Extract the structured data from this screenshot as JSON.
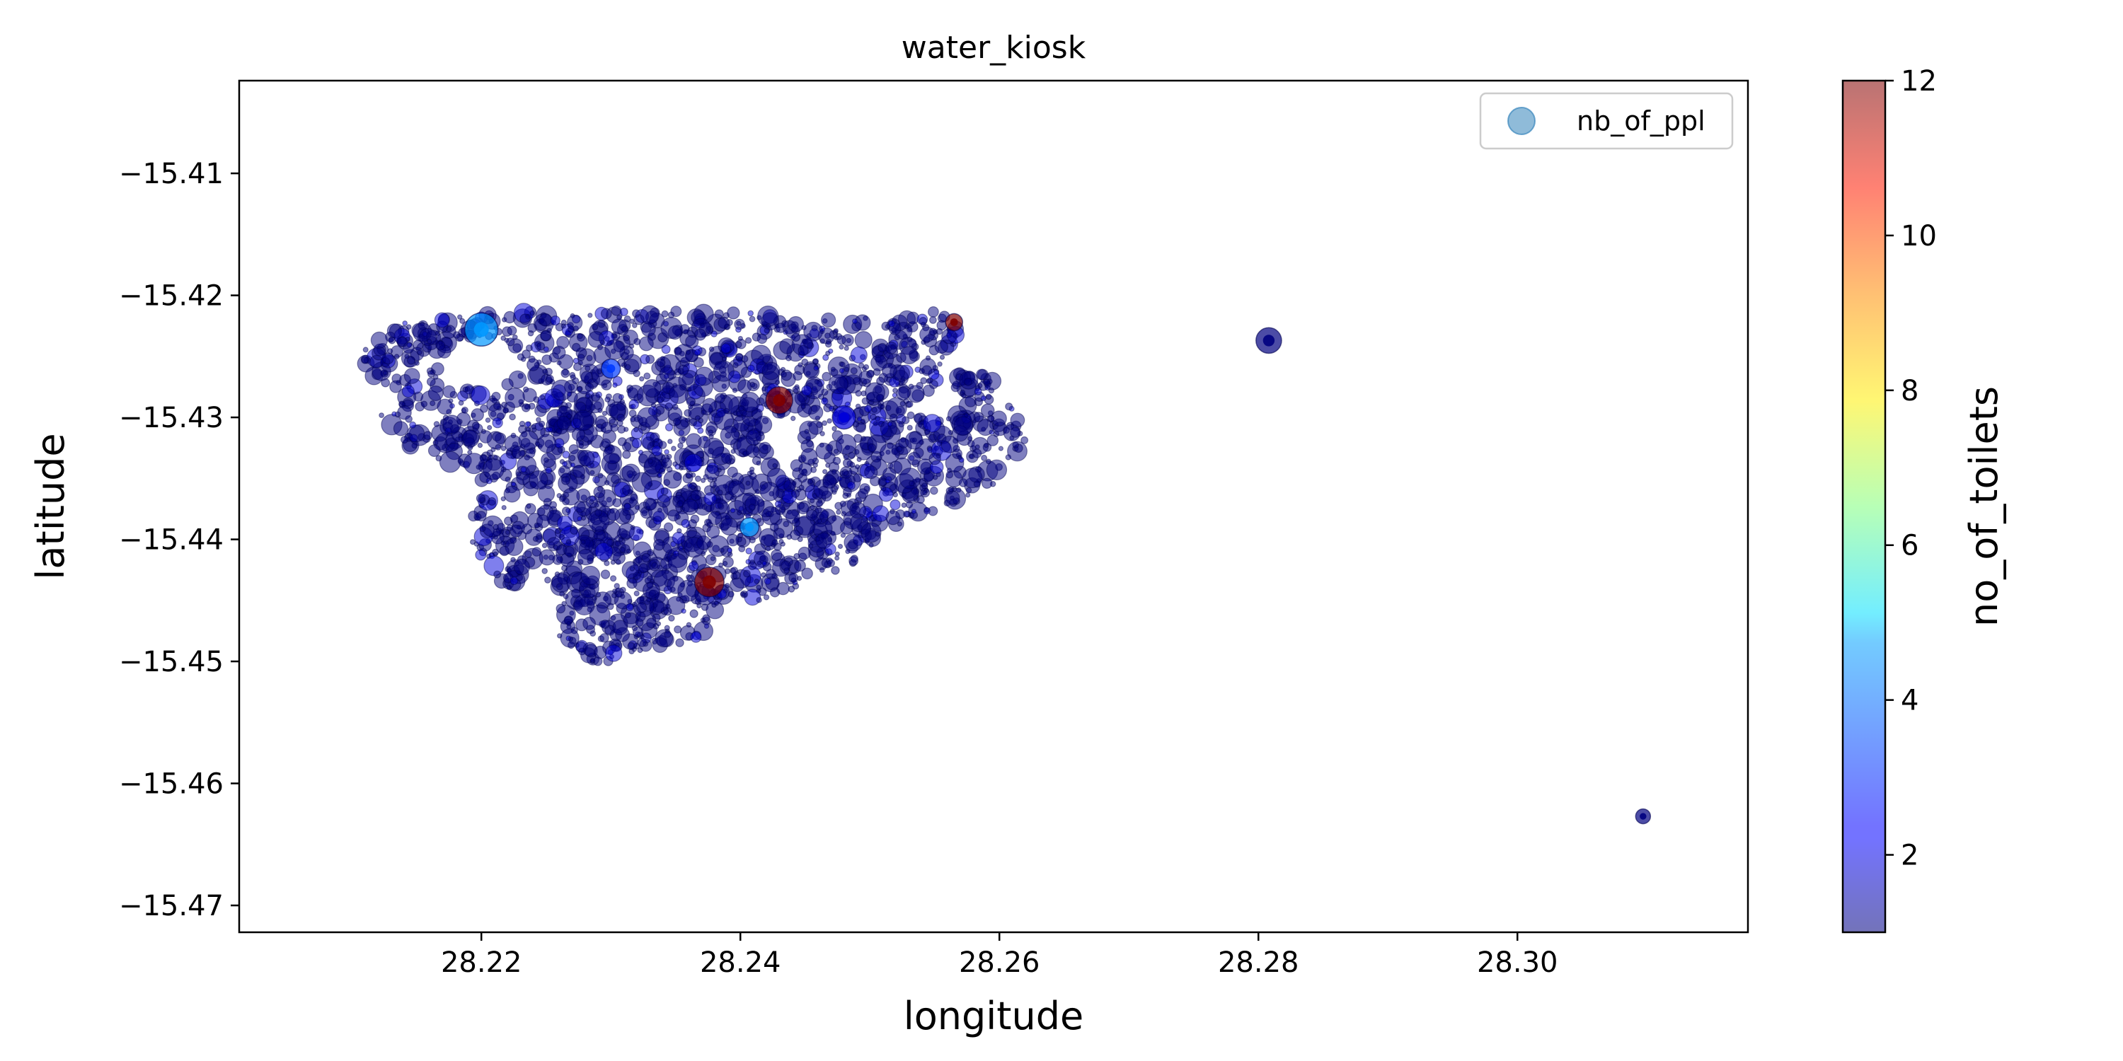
{
  "chart_data": {
    "type": "scatter",
    "title": "water_kiosk",
    "xlabel": "longitude",
    "ylabel": "latitude",
    "xlim": [
      28.2013,
      28.3178
    ],
    "ylim": [
      -15.4722,
      -15.4024
    ],
    "xticks": [
      28.22,
      28.24,
      28.26,
      28.28,
      28.3
    ],
    "xtick_labels": [
      "28.22",
      "28.24",
      "28.26",
      "28.28",
      "28.30"
    ],
    "yticks": [
      -15.41,
      -15.42,
      -15.43,
      -15.44,
      -15.45,
      -15.46,
      -15.47
    ],
    "ytick_labels": [
      "−15.41",
      "−15.42",
      "−15.43",
      "−15.44",
      "−15.45",
      "−15.46",
      "−15.47"
    ],
    "grid": false,
    "legend": {
      "position": "upper-right",
      "entries": [
        "nb_of_ppl"
      ]
    },
    "colorbar": {
      "label": "no_of_toilets",
      "range": [
        1,
        12
      ],
      "ticks": [
        2,
        4,
        6,
        8,
        10,
        12
      ],
      "tick_labels": [
        "2",
        "4",
        "6",
        "8",
        "10",
        "12"
      ],
      "colormap": "jet",
      "alpha": 0.5
    },
    "marker_alpha": 0.5,
    "cluster": {
      "lon_range": [
        28.211,
        28.262
      ],
      "lat_range": [
        -15.4505,
        -15.4207
      ],
      "dominant_toilets": 1
    },
    "highlight_points": [
      {
        "lon": 28.22,
        "lat": -15.4228,
        "toilets": 4,
        "nb_of_ppl": 300
      },
      {
        "lon": 28.243,
        "lat": -15.4286,
        "toilets": 12,
        "nb_of_ppl": 200
      },
      {
        "lon": 28.2376,
        "lat": -15.4435,
        "toilets": 12,
        "nb_of_ppl": 240
      },
      {
        "lon": 28.2565,
        "lat": -15.4222,
        "toilets": 12,
        "nb_of_ppl": 80
      },
      {
        "lon": 28.2407,
        "lat": -15.439,
        "toilets": 4,
        "nb_of_ppl": 100
      },
      {
        "lon": 28.23,
        "lat": -15.426,
        "toilets": 3,
        "nb_of_ppl": 100
      },
      {
        "lon": 28.248,
        "lat": -15.43,
        "toilets": 2,
        "nb_of_ppl": 150
      },
      {
        "lon": 28.2808,
        "lat": -15.4237,
        "toilets": 1,
        "nb_of_ppl": 180
      },
      {
        "lon": 28.3097,
        "lat": -15.4627,
        "toilets": 1,
        "nb_of_ppl": 60
      }
    ]
  }
}
